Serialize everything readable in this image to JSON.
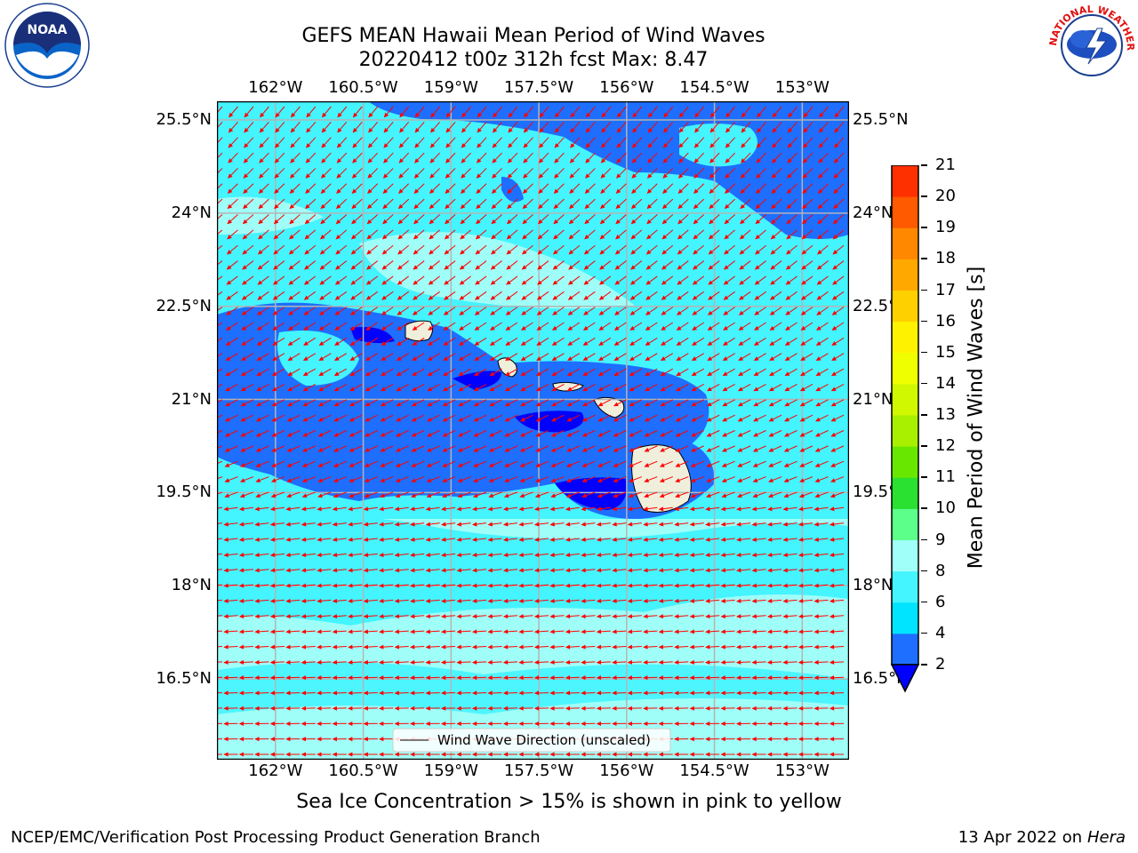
{
  "title": {
    "line1": "GEFS MEAN Hawaii Mean Period of Wind Waves",
    "line2": "20220412 t00z 312h fcst   Max: 8.47"
  },
  "logos": {
    "left": {
      "icon": "noaa-logo",
      "text": "NOAA"
    },
    "right": {
      "icon": "nws-logo",
      "text": "NATIONAL WEATHER SERVICE"
    }
  },
  "map": {
    "lon_ticks": [
      "162°W",
      "160.5°W",
      "159°W",
      "157.5°W",
      "156°W",
      "154.5°W",
      "153°W"
    ],
    "lon_values": [
      -162,
      -160.5,
      -159,
      -157.5,
      -156,
      -154.5,
      -153
    ],
    "lat_ticks": [
      "25.5°N",
      "24°N",
      "22.5°N",
      "21°N",
      "19.5°N",
      "18°N",
      "16.5°N"
    ],
    "lat_values": [
      25.5,
      24,
      22.5,
      21,
      19.5,
      18,
      16.5
    ],
    "lon_range": [
      -163,
      -152.2
    ],
    "lat_range": [
      15.2,
      25.8
    ],
    "legend": "Wind Wave Direction (unscaled)"
  },
  "colorbar": {
    "label": "Mean Period of Wind Waves [s]",
    "ticks": [
      "2",
      "4",
      "6",
      "8",
      "9",
      "10",
      "11",
      "12",
      "13",
      "14",
      "15",
      "16",
      "17",
      "18",
      "19",
      "20",
      "21"
    ],
    "colors": [
      "#1e6eff",
      "#00e4ff",
      "#44f4ff",
      "#a0fff8",
      "#5cff8a",
      "#2ae030",
      "#68e800",
      "#a8f000",
      "#d0f800",
      "#f0ff00",
      "#fff200",
      "#ffd000",
      "#ffa800",
      "#ff8800",
      "#ff5a00",
      "#ff3000",
      "#ff0000"
    ],
    "under_color": "#0000ff"
  },
  "subnote": "Sea Ice Concentration > 15% is shown in pink to yellow",
  "footer": {
    "left": "NCEP/EMC/Verification Post Processing Product Generation Branch",
    "right_prefix": "13 Apr 2022 on ",
    "right_italic": "Hera"
  }
}
